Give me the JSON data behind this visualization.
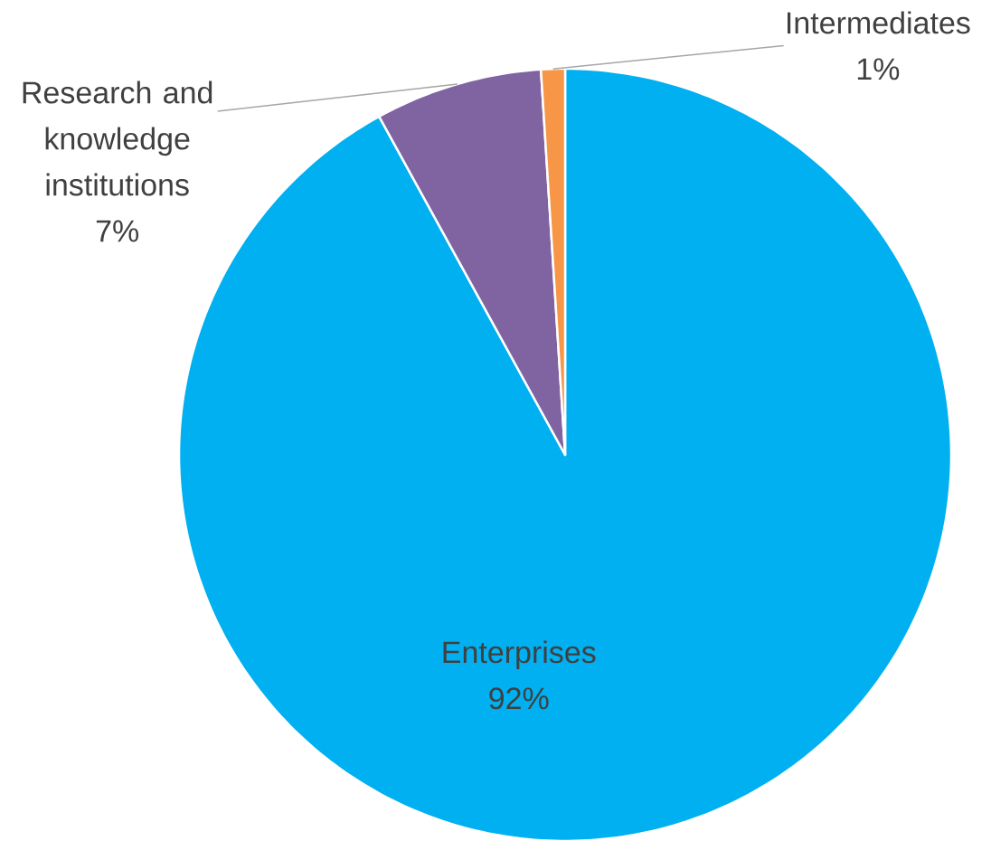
{
  "chart_data": {
    "type": "pie",
    "categories": [
      "Enterprises",
      "Research and knowledge institutions",
      "Intermediates"
    ],
    "values": [
      92,
      7,
      1
    ],
    "colors": [
      "#00b0f0",
      "#8064a2",
      "#f79646"
    ],
    "value_labels": [
      "92%",
      "7%",
      "1%"
    ]
  }
}
